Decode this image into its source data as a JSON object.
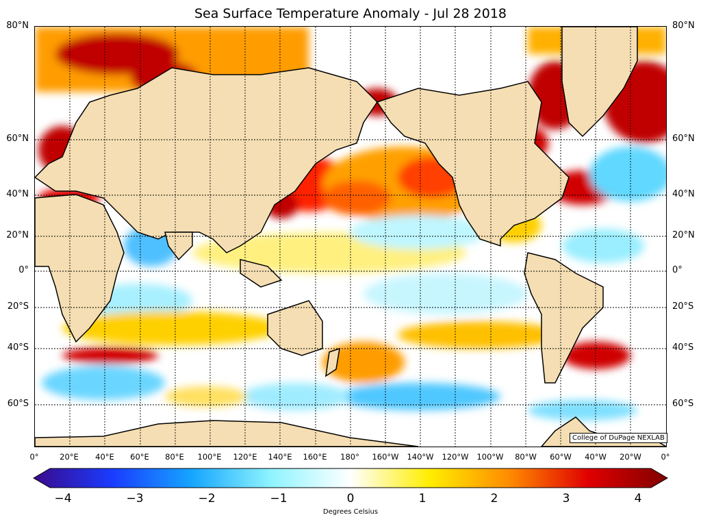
{
  "title": "Sea Surface Temperature Anomaly - Jul 28 2018",
  "lat_labels": [
    "80°N",
    "60°N",
    "40°N",
    "20°N",
    "0°",
    "20°S",
    "40°S",
    "60°S"
  ],
  "lon_labels": [
    "0°",
    "20°E",
    "40°E",
    "60°E",
    "80°E",
    "100°E",
    "120°E",
    "140°E",
    "160°E",
    "180°",
    "160°W",
    "140°W",
    "120°W",
    "100°W",
    "80°W",
    "60°W",
    "40°W",
    "20°W",
    "0°"
  ],
  "credit": "College of DuPage NEXLAB",
  "colorbar": {
    "label": "Degrees Celsius",
    "ticks": [
      "−4",
      "−3",
      "−2",
      "−1",
      "0",
      "1",
      "2",
      "3",
      "4"
    ],
    "min": -4,
    "max": 4,
    "colors": [
      "#3a0a8c",
      "#1a3cff",
      "#16a6ff",
      "#8ff4ff",
      "#ffffff",
      "#ffee00",
      "#ff8c00",
      "#e00000",
      "#800000"
    ]
  },
  "colors": {
    "land": "#f5deb3",
    "warm": "#ff8c00",
    "hot": "#cc0000",
    "cool": "#7fd8ff"
  }
}
